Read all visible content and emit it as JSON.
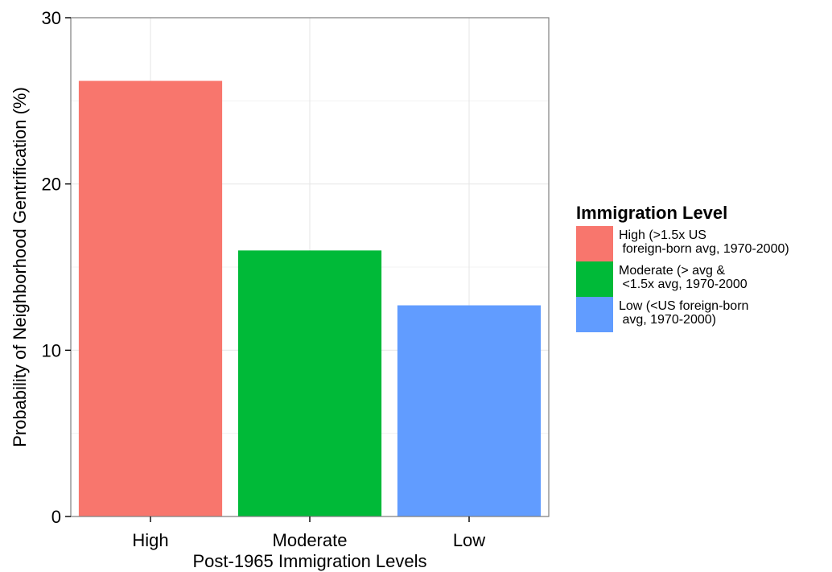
{
  "chart_data": {
    "type": "bar",
    "categories": [
      "High",
      "Moderate",
      "Low"
    ],
    "values": [
      26.2,
      16.0,
      12.7
    ],
    "colors": [
      "#f8766d",
      "#00ba38",
      "#619cff"
    ],
    "xlabel": "Post-1965 Immigration Levels",
    "ylabel": "Probability of Neighborhood Gentrification (%)",
    "ylim": [
      0,
      30
    ],
    "yticks": [
      0,
      10,
      20,
      30
    ],
    "grid": true,
    "legend": {
      "title": "Immigration Level",
      "position": "right",
      "entries": [
        {
          "lines": [
            "High (>1.5x US",
            " foreign-born avg, 1970-2000)"
          ],
          "color": "#f8766d"
        },
        {
          "lines": [
            "Moderate (> avg &",
            " <1.5x avg, 1970-2000"
          ],
          "color": "#00ba38"
        },
        {
          "lines": [
            "Low (<US foreign-born",
            " avg, 1970-2000)"
          ],
          "color": "#619cff"
        }
      ]
    }
  }
}
